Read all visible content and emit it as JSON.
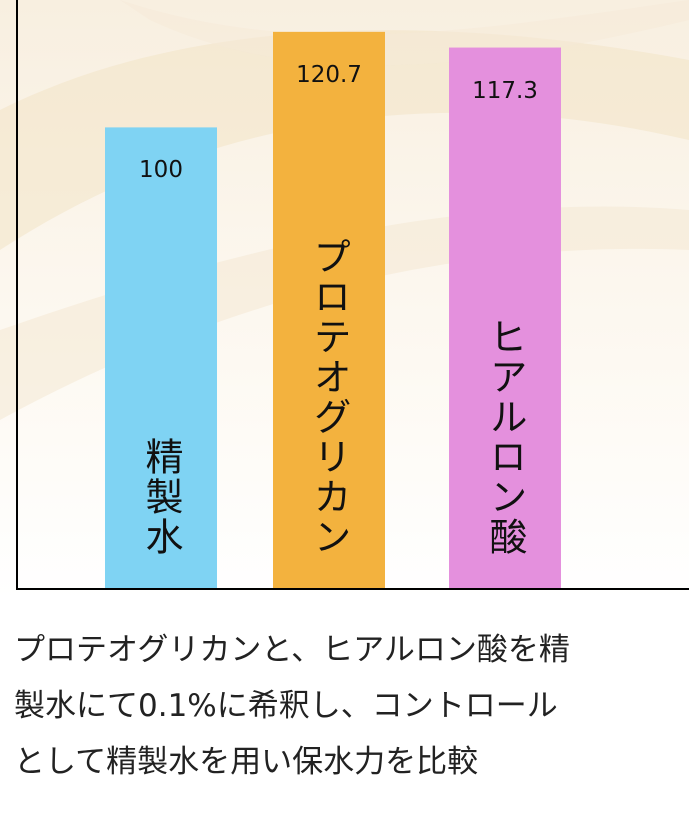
{
  "chart_data": {
    "type": "bar",
    "categories": [
      "精製水",
      "プロテオグリカン",
      "ヒアルロン酸"
    ],
    "values": [
      100,
      120.7,
      117.3
    ],
    "value_labels": [
      "100",
      "120.7",
      "117.3"
    ],
    "colors": [
      "#7fd3f3",
      "#f3b23e",
      "#e490dd"
    ],
    "ylim": [
      0,
      125
    ],
    "grid": false
  },
  "caption": {
    "lines": [
      "プロテオグリカンと、ヒアルロン酸を精",
      "製水にて0.1%に希釈し、コントロール",
      "として精製水を用い保水力を比較"
    ]
  }
}
